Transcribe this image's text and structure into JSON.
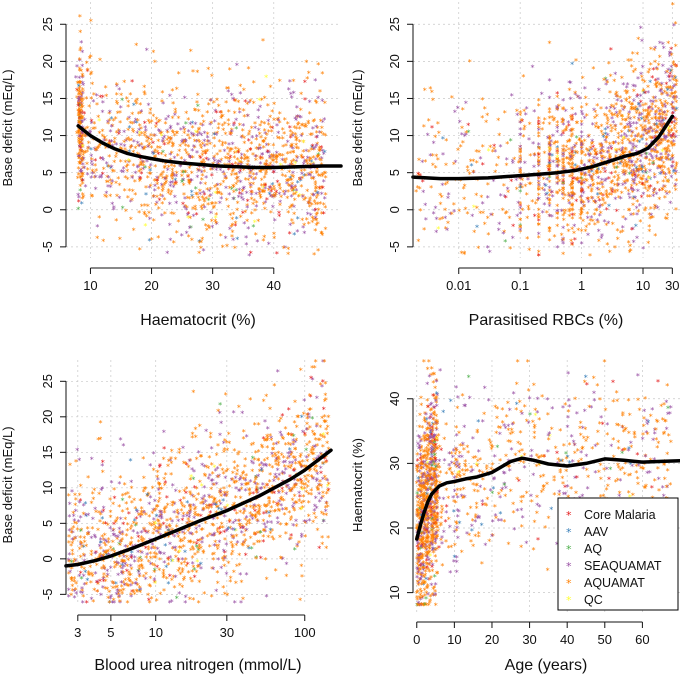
{
  "series_colors": {
    "Core Malaria": "#e41a1c",
    "AAV": "#377eb8",
    "AQ": "#4daf4a",
    "SEAQUAMAT": "#984ea3",
    "AQUAMAT": "#ff7f00",
    "QC": "#ffff33"
  },
  "legend": {
    "entries": [
      "Core Malaria",
      "AAV",
      "AQ",
      "SEAQUAMAT",
      "AQUAMAT",
      "QC"
    ],
    "marker_glyph": "*"
  },
  "chart_data": [
    {
      "id": "p1",
      "type": "scatter",
      "xlabel": "Haematocrit (%)",
      "ylabel": "Base deficit (mEq/L)",
      "xscale": "linear",
      "xlim": [
        6,
        51
      ],
      "ylim": [
        -6.5,
        28
      ],
      "xticks": [
        10,
        20,
        30,
        40
      ],
      "xtick_labels": [
        "10",
        "20",
        "30",
        "40"
      ],
      "yticks": [
        -5,
        0,
        5,
        10,
        15,
        20,
        25
      ],
      "ytick_labels": [
        "-5",
        "0",
        "5",
        "10",
        "15",
        "20",
        "25"
      ],
      "fit_line": {
        "x": [
          8,
          10,
          12,
          14,
          16,
          18,
          20,
          22,
          25,
          28,
          31,
          34,
          37,
          40,
          44,
          48,
          51
        ],
        "y": [
          11.3,
          10.0,
          9.0,
          8.2,
          7.6,
          7.2,
          6.9,
          6.6,
          6.3,
          6.1,
          5.9,
          5.8,
          5.7,
          5.7,
          5.8,
          5.9,
          5.9
        ]
      }
    },
    {
      "id": "p2",
      "type": "scatter",
      "xlabel": "Parasitised RBCs (%)",
      "ylabel": "Base deficit (mEq/L)",
      "xscale": "log",
      "xlim": [
        0.0018,
        40
      ],
      "ylim": [
        -6.5,
        28
      ],
      "xticks": [
        0.01,
        0.1,
        1,
        10,
        30
      ],
      "xtick_labels": [
        "0.01",
        "0.1",
        "1",
        "10",
        "30"
      ],
      "yticks": [
        -5,
        0,
        5,
        10,
        15,
        20,
        25
      ],
      "ytick_labels": [
        "-5",
        "0",
        "5",
        "10",
        "15",
        "20",
        "25"
      ],
      "fit_line": {
        "x": [
          0.0018,
          0.005,
          0.01,
          0.03,
          0.1,
          0.2,
          0.4,
          0.8,
          1.5,
          3,
          5,
          8,
          12,
          18,
          25,
          30
        ],
        "y": [
          4.4,
          4.2,
          4.2,
          4.3,
          4.6,
          4.8,
          5.0,
          5.3,
          5.8,
          6.6,
          7.2,
          7.6,
          8.3,
          9.8,
          11.6,
          12.6
        ]
      }
    },
    {
      "id": "p3",
      "type": "scatter",
      "xlabel": "Blood urea nitrogen (mmol/L)",
      "ylabel": "Base deficit (mEq/L)",
      "xscale": "log",
      "xlim": [
        2.5,
        150
      ],
      "ylim": [
        -6.5,
        28
      ],
      "xticks": [
        3,
        5,
        10,
        30,
        100
      ],
      "xtick_labels": [
        "3",
        "5",
        "10",
        "30",
        "100"
      ],
      "yticks": [
        -5,
        0,
        5,
        10,
        15,
        20,
        25
      ],
      "ytick_labels": [
        "-5",
        "0",
        "5",
        "10",
        "15",
        "20",
        "25"
      ],
      "fit_line": {
        "x": [
          2.5,
          3,
          4,
          5,
          7,
          10,
          15,
          20,
          30,
          50,
          80,
          100,
          130,
          150
        ],
        "y": [
          -1.0,
          -0.8,
          -0.2,
          0.4,
          1.5,
          2.8,
          4.3,
          5.4,
          6.8,
          8.9,
          11.2,
          12.5,
          14.3,
          15.3
        ]
      }
    },
    {
      "id": "p4",
      "type": "scatter",
      "xlabel": "Age (years)",
      "ylabel": "Haematocrit (%)",
      "xscale": "linear",
      "xlim": [
        -1,
        70
      ],
      "ylim": [
        7,
        46
      ],
      "xticks": [
        0,
        10,
        20,
        30,
        40,
        50,
        60
      ],
      "xtick_labels": [
        "0",
        "10",
        "20",
        "30",
        "40",
        "50",
        "60"
      ],
      "yticks": [
        10,
        20,
        30,
        40
      ],
      "ytick_labels": [
        "10",
        "20",
        "30",
        "40"
      ],
      "fit_line": {
        "x": [
          0,
          1,
          2,
          3,
          4,
          6,
          8,
          10,
          13,
          16,
          20,
          25,
          28,
          31,
          35,
          40,
          45,
          50,
          55,
          60,
          65,
          70
        ],
        "y": [
          18.3,
          20.5,
          22.5,
          24.1,
          25.3,
          26.5,
          27.0,
          27.2,
          27.6,
          27.9,
          28.6,
          30.3,
          30.8,
          30.5,
          29.9,
          29.6,
          30.0,
          30.7,
          30.5,
          30.2,
          30.3,
          30.4
        ]
      }
    }
  ]
}
